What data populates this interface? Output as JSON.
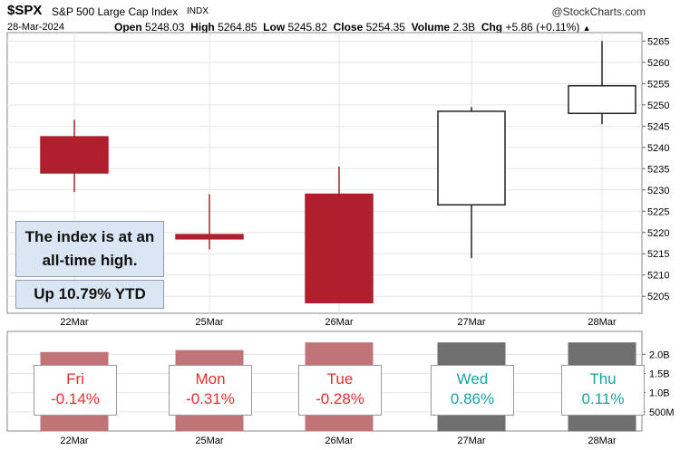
{
  "header": {
    "symbol": "$SPX",
    "index_name": "S&P 500 Large Cap Index",
    "index_type": "INDX",
    "brand": "@StockCharts.com",
    "date": "28-Mar-2024",
    "open_label": "Open",
    "open_value": "5248.03",
    "high_label": "High",
    "high_value": "5264.85",
    "low_label": "Low",
    "low_value": "5245.82",
    "close_label": "Close",
    "close_value": "5254.35",
    "volume_label": "Volume",
    "volume_value": "2.3B",
    "chg_label": "Chg",
    "chg_value": "+5.86 (+0.11%)",
    "chg_arrow": "▲"
  },
  "annotations": {
    "note1": "The index is at an all-time high.",
    "note2": "Up 10.79% YTD"
  },
  "colors": {
    "down": "#b01f2e",
    "volume_down": "#c07478",
    "volume_up": "#6f6f6f",
    "up_fill": "#ffffff",
    "grid": "#e6e6e6"
  },
  "chart_data": [
    {
      "type": "candlestick",
      "categories": [
        "22Mar",
        "25Mar",
        "26Mar",
        "27Mar",
        "28Mar"
      ],
      "open": [
        5242.5,
        5219.5,
        5229.0,
        5226.5,
        5248.0
      ],
      "high": [
        5246.5,
        5229.0,
        5235.5,
        5249.5,
        5265.0
      ],
      "low": [
        5229.5,
        5216.0,
        5203.5,
        5214.0,
        5245.5
      ],
      "close": [
        5234.0,
        5218.5,
        5203.5,
        5248.5,
        5254.5
      ],
      "ylim": [
        5201,
        5267
      ],
      "yticks": [
        5205,
        5210,
        5215,
        5220,
        5225,
        5230,
        5235,
        5240,
        5245,
        5250,
        5255,
        5260,
        5265
      ],
      "grid": true
    },
    {
      "type": "bar",
      "title": "Volume",
      "categories": [
        "22Mar",
        "25Mar",
        "26Mar",
        "27Mar",
        "28Mar"
      ],
      "values": [
        2.05,
        2.1,
        2.3,
        2.3,
        2.3
      ],
      "direction": [
        "down",
        "down",
        "down",
        "up",
        "up"
      ],
      "ylim": [
        0,
        2.6
      ],
      "yticks": [
        0.5,
        1.0,
        1.5,
        2.0
      ],
      "ytick_labels": [
        "500M",
        "1.0B",
        "1.5B",
        "2.0B"
      ],
      "day_labels": [
        {
          "day": "Fri",
          "pct": "-0.14%",
          "sign": "neg"
        },
        {
          "day": "Mon",
          "pct": "-0.31%",
          "sign": "neg"
        },
        {
          "day": "Tue",
          "pct": "-0.28%",
          "sign": "neg"
        },
        {
          "day": "Wed",
          "pct": "0.86%",
          "sign": "pos"
        },
        {
          "day": "Thu",
          "pct": "0.11%",
          "sign": "pos"
        }
      ]
    }
  ]
}
